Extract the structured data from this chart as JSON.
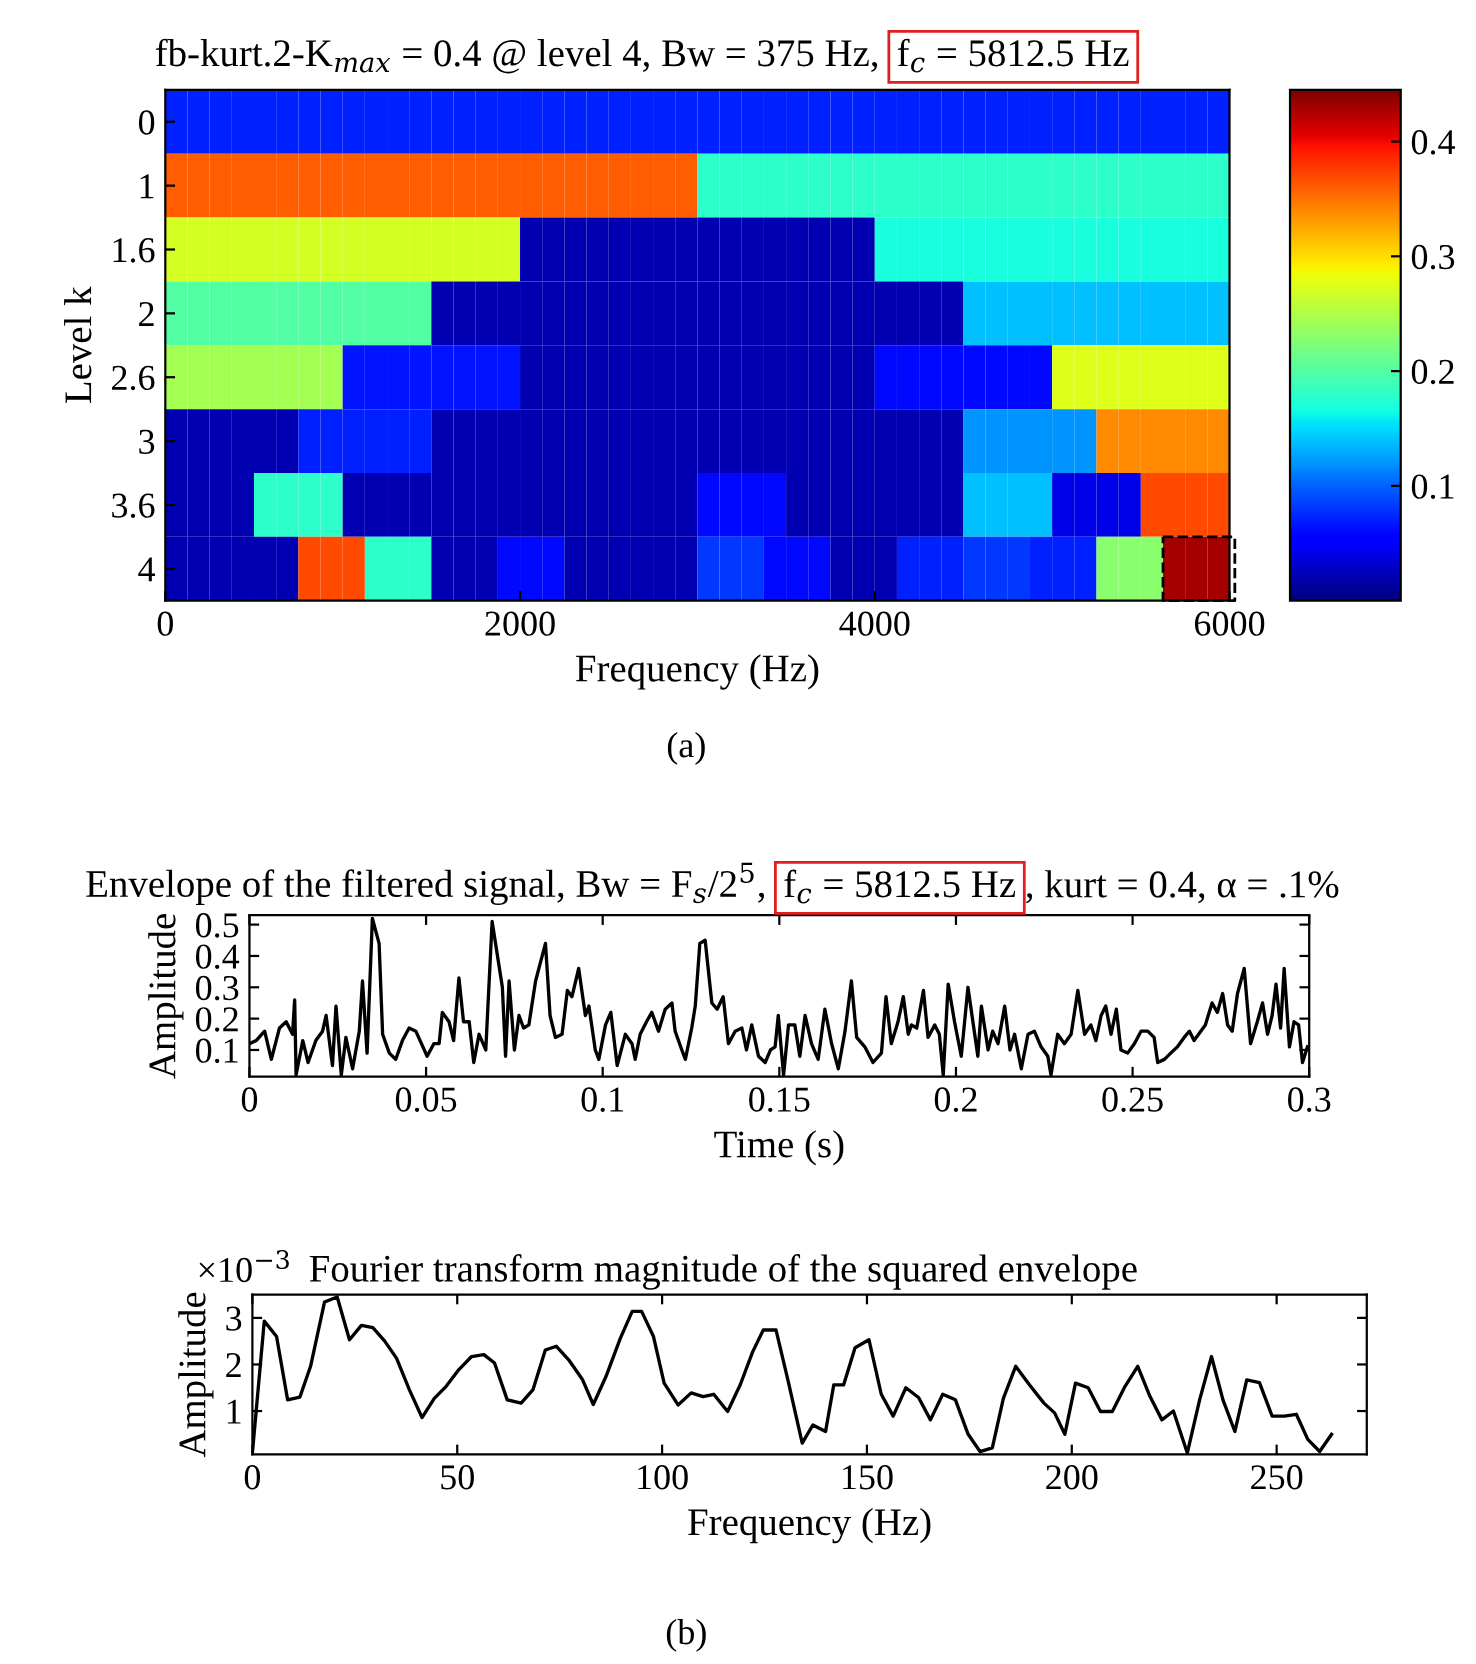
{
  "chart_data": [
    {
      "type": "heatmap",
      "title": "fb-kurt.2-K$_{max}$ = 0.4 @ level 4, Bw = 375 Hz,",
      "xlabel": "Frequency (Hz)",
      "ylabel": "Level k",
      "y_categories": [
        "0",
        "1",
        "1.6",
        "2",
        "2.6",
        "3",
        "3.6",
        "4"
      ],
      "cells": [
        [
          0.07,
          0.07,
          0.07,
          0.07,
          0.07,
          0.07,
          0.07,
          0.07,
          0.07,
          0.07,
          0.07,
          0.07,
          0.07,
          0.07,
          0.07,
          0.07,
          0.07,
          0.07,
          0.07,
          0.07,
          0.07,
          0.07,
          0.07,
          0.07,
          0.07,
          0.07,
          0.07,
          0.07,
          0.07,
          0.07,
          0.07,
          0.07,
          0.07,
          0.07,
          0.07,
          0.07,
          0.07,
          0.07,
          0.07,
          0.07,
          0.07,
          0.07,
          0.07,
          0.07,
          0.07,
          0.07,
          0.07,
          0.07
        ],
        [
          0.36,
          0.36,
          0.36,
          0.36,
          0.36,
          0.36,
          0.36,
          0.36,
          0.36,
          0.36,
          0.36,
          0.36,
          0.36,
          0.36,
          0.36,
          0.36,
          0.36,
          0.36,
          0.36,
          0.36,
          0.36,
          0.36,
          0.36,
          0.36,
          0.18,
          0.18,
          0.18,
          0.18,
          0.18,
          0.18,
          0.18,
          0.18,
          0.18,
          0.18,
          0.18,
          0.18,
          0.18,
          0.18,
          0.18,
          0.18,
          0.18,
          0.18,
          0.18,
          0.18,
          0.18,
          0.18,
          0.18,
          0.18
        ],
        [
          0.27,
          0.27,
          0.27,
          0.27,
          0.27,
          0.27,
          0.27,
          0.27,
          0.27,
          0.27,
          0.27,
          0.27,
          0.27,
          0.27,
          0.27,
          0.27,
          0.02,
          0.02,
          0.02,
          0.02,
          0.02,
          0.02,
          0.02,
          0.02,
          0.02,
          0.02,
          0.02,
          0.02,
          0.02,
          0.02,
          0.02,
          0.02,
          0.17,
          0.17,
          0.17,
          0.17,
          0.17,
          0.17,
          0.17,
          0.17,
          0.17,
          0.17,
          0.17,
          0.17,
          0.17,
          0.17,
          0.17,
          0.17
        ],
        [
          0.2,
          0.2,
          0.2,
          0.2,
          0.2,
          0.2,
          0.2,
          0.2,
          0.2,
          0.2,
          0.2,
          0.2,
          0.02,
          0.02,
          0.02,
          0.02,
          0.02,
          0.02,
          0.02,
          0.02,
          0.02,
          0.02,
          0.02,
          0.02,
          0.02,
          0.02,
          0.02,
          0.02,
          0.02,
          0.02,
          0.02,
          0.02,
          0.02,
          0.02,
          0.02,
          0.02,
          0.14,
          0.14,
          0.14,
          0.14,
          0.14,
          0.14,
          0.14,
          0.14,
          0.14,
          0.14,
          0.14,
          0.14
        ],
        [
          0.245,
          0.245,
          0.245,
          0.245,
          0.245,
          0.245,
          0.245,
          0.245,
          0.065,
          0.065,
          0.065,
          0.065,
          0.065,
          0.065,
          0.065,
          0.065,
          0.02,
          0.02,
          0.02,
          0.02,
          0.02,
          0.02,
          0.02,
          0.02,
          0.02,
          0.02,
          0.02,
          0.02,
          0.02,
          0.02,
          0.02,
          0.02,
          0.06,
          0.06,
          0.06,
          0.06,
          0.06,
          0.06,
          0.06,
          0.06,
          0.275,
          0.275,
          0.275,
          0.275,
          0.275,
          0.275,
          0.275,
          0.275
        ],
        [
          0.02,
          0.02,
          0.02,
          0.02,
          0.02,
          0.02,
          0.07,
          0.07,
          0.07,
          0.07,
          0.07,
          0.07,
          0.02,
          0.02,
          0.02,
          0.02,
          0.02,
          0.02,
          0.02,
          0.02,
          0.02,
          0.02,
          0.02,
          0.02,
          0.02,
          0.02,
          0.02,
          0.02,
          0.02,
          0.02,
          0.02,
          0.02,
          0.02,
          0.02,
          0.02,
          0.02,
          0.12,
          0.12,
          0.12,
          0.12,
          0.12,
          0.12,
          0.34,
          0.34,
          0.34,
          0.34,
          0.34,
          0.34
        ],
        [
          0.02,
          0.02,
          0.02,
          0.02,
          0.18,
          0.18,
          0.18,
          0.18,
          0.02,
          0.02,
          0.02,
          0.02,
          0.02,
          0.02,
          0.02,
          0.02,
          0.02,
          0.02,
          0.02,
          0.02,
          0.02,
          0.02,
          0.02,
          0.02,
          0.06,
          0.06,
          0.06,
          0.06,
          0.02,
          0.02,
          0.02,
          0.02,
          0.02,
          0.02,
          0.02,
          0.02,
          0.14,
          0.14,
          0.14,
          0.14,
          0.04,
          0.04,
          0.04,
          0.04,
          0.37,
          0.37,
          0.37,
          0.37
        ],
        [
          0.02,
          0.02,
          0.02,
          0.02,
          0.02,
          0.02,
          0.37,
          0.37,
          0.37,
          0.18,
          0.18,
          0.18,
          0.02,
          0.02,
          0.02,
          0.06,
          0.06,
          0.06,
          0.02,
          0.02,
          0.02,
          0.02,
          0.02,
          0.02,
          0.08,
          0.08,
          0.08,
          0.06,
          0.06,
          0.06,
          0.02,
          0.02,
          0.02,
          0.07,
          0.07,
          0.07,
          0.08,
          0.08,
          0.08,
          0.07,
          0.07,
          0.07,
          0.23,
          0.23,
          0.23,
          0.43,
          0.43,
          0.43
        ]
      ],
      "xlim": [
        0,
        6000
      ],
      "xticks": [
        0,
        2000,
        4000,
        6000
      ],
      "clim": [
        0,
        0.445
      ],
      "cticks": [
        0.1,
        0.2,
        0.3,
        0.4
      ],
      "grid": false,
      "annotations": [
        "f$_{c}$ = 5812.5 Hz",
        "(a)"
      ]
    },
    {
      "type": "line",
      "title": "Envelope of the filtered signal, Bw = F$_{s}$/2$^{5}$,",
      "xlabel": "Time (s)",
      "ylabel": "Amplitude",
      "xlim": [
        0,
        0.3
      ],
      "xticks": [
        0,
        0.05,
        0.1,
        0.15,
        0.2,
        0.25,
        0.3
      ],
      "ylim": [
        0.015,
        0.53
      ],
      "yticks": [
        0.1,
        0.2,
        0.3,
        0.4,
        0.5
      ],
      "grid": false,
      "marker": "none",
      "line_style": "solid",
      "series": [
        {
          "color": "#000000",
          "x": [
            0.0,
            0.0019,
            0.0043,
            0.0062,
            0.0085,
            0.0104,
            0.0122,
            0.0128,
            0.0132,
            0.0151,
            0.0166,
            0.0188,
            0.0207,
            0.0217,
            0.0235,
            0.0245,
            0.026,
            0.0273,
            0.0292,
            0.0311,
            0.032,
            0.0333,
            0.0348,
            0.0367,
            0.0377,
            0.0396,
            0.0414,
            0.0433,
            0.0452,
            0.0471,
            0.0503,
            0.0522,
            0.0537,
            0.0546,
            0.0565,
            0.0578,
            0.0593,
            0.0606,
            0.0622,
            0.0635,
            0.065,
            0.0669,
            0.0687,
            0.0716,
            0.0725,
            0.0735,
            0.075,
            0.0763,
            0.0776,
            0.0791,
            0.081,
            0.0838,
            0.0851,
            0.0866,
            0.0885,
            0.09,
            0.0913,
            0.0932,
            0.0951,
            0.0961,
            0.0979,
            0.0989,
            0.1008,
            0.1023,
            0.1041,
            0.1064,
            0.1083,
            0.1092,
            0.1106,
            0.1124,
            0.1139,
            0.1158,
            0.1177,
            0.1196,
            0.1205,
            0.1224,
            0.1234,
            0.1252,
            0.1262,
            0.1275,
            0.129,
            0.1309,
            0.1324,
            0.1341,
            0.1356,
            0.1375,
            0.1394,
            0.1407,
            0.1422,
            0.1441,
            0.146,
            0.1475,
            0.1488,
            0.1497,
            0.1512,
            0.1526,
            0.1544,
            0.1558,
            0.1573,
            0.1591,
            0.161,
            0.1629,
            0.1648,
            0.1667,
            0.1686,
            0.1704,
            0.1719,
            0.1742,
            0.1765,
            0.1789,
            0.1802,
            0.1817,
            0.1836,
            0.1851,
            0.1865,
            0.1874,
            0.1889,
            0.1908,
            0.1921,
            0.194,
            0.1953,
            0.1964,
            0.1978,
            0.1996,
            0.2015,
            0.2034,
            0.2062,
            0.2072,
            0.2091,
            0.2104,
            0.2119,
            0.2138,
            0.2153,
            0.2166,
            0.2185,
            0.2204,
            0.2222,
            0.2241,
            0.226,
            0.2269,
            0.2288,
            0.2307,
            0.2326,
            0.2345,
            0.2364,
            0.2382,
            0.2396,
            0.2411,
            0.2424,
            0.2439,
            0.2454,
            0.2467,
            0.2486,
            0.2505,
            0.2524,
            0.2543,
            0.2561,
            0.2571,
            0.259,
            0.2608,
            0.2627,
            0.2646,
            0.2661,
            0.2674,
            0.2693,
            0.2706,
            0.2725,
            0.274,
            0.2755,
            0.2769,
            0.2782,
            0.2797,
            0.2816,
            0.2834,
            0.2853,
            0.2868,
            0.2882,
            0.2895,
            0.2906,
            0.2919,
            0.2929,
            0.2944,
            0.2957,
            0.297,
            0.2981,
            0.2995
          ],
          "values": [
            0.12,
            0.13,
            0.16,
            0.07,
            0.17,
            0.19,
            0.15,
            0.26,
            0.02,
            0.13,
            0.06,
            0.13,
            0.16,
            0.21,
            0.05,
            0.24,
            0.02,
            0.14,
            0.04,
            0.16,
            0.32,
            0.09,
            0.52,
            0.44,
            0.15,
            0.09,
            0.07,
            0.13,
            0.17,
            0.16,
            0.08,
            0.12,
            0.12,
            0.22,
            0.19,
            0.13,
            0.33,
            0.19,
            0.19,
            0.06,
            0.15,
            0.1,
            0.51,
            0.3,
            0.08,
            0.32,
            0.1,
            0.21,
            0.17,
            0.18,
            0.32,
            0.44,
            0.21,
            0.14,
            0.15,
            0.29,
            0.27,
            0.36,
            0.21,
            0.24,
            0.1,
            0.07,
            0.18,
            0.22,
            0.05,
            0.15,
            0.12,
            0.07,
            0.15,
            0.19,
            0.22,
            0.16,
            0.23,
            0.25,
            0.16,
            0.1,
            0.07,
            0.17,
            0.24,
            0.44,
            0.45,
            0.25,
            0.23,
            0.27,
            0.12,
            0.16,
            0.17,
            0.1,
            0.18,
            0.08,
            0.06,
            0.1,
            0.11,
            0.21,
            0.02,
            0.18,
            0.18,
            0.08,
            0.21,
            0.12,
            0.07,
            0.23,
            0.12,
            0.04,
            0.16,
            0.32,
            0.14,
            0.11,
            0.06,
            0.09,
            0.27,
            0.12,
            0.19,
            0.27,
            0.15,
            0.18,
            0.17,
            0.29,
            0.14,
            0.18,
            0.15,
            0.02,
            0.31,
            0.19,
            0.08,
            0.3,
            0.08,
            0.24,
            0.1,
            0.16,
            0.12,
            0.24,
            0.1,
            0.15,
            0.04,
            0.15,
            0.16,
            0.11,
            0.08,
            0.02,
            0.15,
            0.12,
            0.15,
            0.29,
            0.15,
            0.18,
            0.13,
            0.21,
            0.24,
            0.15,
            0.23,
            0.1,
            0.09,
            0.12,
            0.16,
            0.16,
            0.14,
            0.06,
            0.07,
            0.09,
            0.11,
            0.14,
            0.16,
            0.13,
            0.16,
            0.18,
            0.25,
            0.22,
            0.28,
            0.18,
            0.16,
            0.28,
            0.36,
            0.12,
            0.19,
            0.25,
            0.15,
            0.21,
            0.31,
            0.17,
            0.36,
            0.11,
            0.19,
            0.18,
            0.06,
            0.11
          ]
        }
      ],
      "annotations": [
        "f$_{c}$ = 5812.5 Hz",
        ", kurt = 0.4, α = .1%"
      ]
    },
    {
      "type": "line",
      "title": "Fourier transform magnitude of the squared envelope",
      "xlabel": "Frequency (Hz)",
      "ylabel": "Amplitude",
      "xlim": [
        0,
        272
      ],
      "xticks": [
        0,
        50,
        100,
        150,
        200,
        250
      ],
      "ylim": [
        0.07,
        3.5
      ],
      "yticks": [
        1,
        2,
        3
      ],
      "grid": false,
      "marker": "none",
      "line_style": "solid",
      "series": [
        {
          "color": "#000000",
          "x": [
            0,
            2.9,
            5.9,
            8.6,
            11.6,
            14.2,
            17.6,
            20.7,
            23.7,
            26.6,
            29.4,
            32.3,
            35.2,
            38.3,
            41.4,
            44.4,
            47.3,
            50.4,
            53.5,
            56.5,
            59.1,
            62.2,
            65.6,
            68.5,
            71.5,
            74.2,
            77.2,
            80.6,
            83.2,
            86.3,
            89.8,
            92.7,
            95.0,
            97.9,
            100.5,
            103.9,
            107.1,
            110.0,
            112.6,
            116.0,
            119.1,
            122.1,
            124.7,
            127.8,
            130.7,
            134.2,
            136.8,
            139.9,
            141.9,
            144.3,
            147.1,
            150.5,
            153.5,
            156.4,
            159.5,
            162.6,
            165.5,
            168.5,
            171.6,
            174.7,
            177.6,
            180.6,
            183.3,
            186.3,
            189.7,
            193.2,
            195.8,
            198.3,
            200.9,
            204.0,
            207.0,
            209.9,
            213.0,
            216.1,
            219.1,
            222.0,
            224.8,
            228.2,
            231.2,
            234.1,
            236.9,
            239.8,
            242.7,
            245.8,
            248.9,
            251.9,
            254.8,
            257.6,
            260.5,
            263.4
          ],
          "values": [
            0.1,
            2.93,
            2.6,
            1.24,
            1.3,
            1.96,
            3.34,
            3.45,
            2.53,
            2.84,
            2.79,
            2.5,
            2.13,
            1.46,
            0.86,
            1.27,
            1.53,
            1.89,
            2.17,
            2.21,
            2.03,
            1.24,
            1.17,
            1.46,
            2.31,
            2.39,
            2.1,
            1.67,
            1.14,
            1.74,
            2.56,
            3.14,
            3.14,
            2.6,
            1.6,
            1.13,
            1.39,
            1.31,
            1.36,
            0.99,
            1.57,
            2.27,
            2.74,
            2.74,
            1.67,
            0.31,
            0.7,
            0.56,
            1.56,
            1.56,
            2.36,
            2.53,
            1.36,
            0.89,
            1.5,
            1.29,
            0.81,
            1.36,
            1.24,
            0.5,
            0.13,
            0.21,
            1.27,
            1.96,
            1.56,
            1.17,
            0.96,
            0.5,
            1.6,
            1.5,
            0.99,
            0.99,
            1.53,
            1.96,
            1.31,
            0.81,
            1.0,
            0.1,
            1.24,
            2.17,
            1.24,
            0.56,
            1.67,
            1.61,
            0.89,
            0.89,
            0.93,
            0.39,
            0.13,
            0.5
          ]
        }
      ],
      "annotations": [
        "×10$^{−3}$",
        "(b)"
      ]
    }
  ]
}
